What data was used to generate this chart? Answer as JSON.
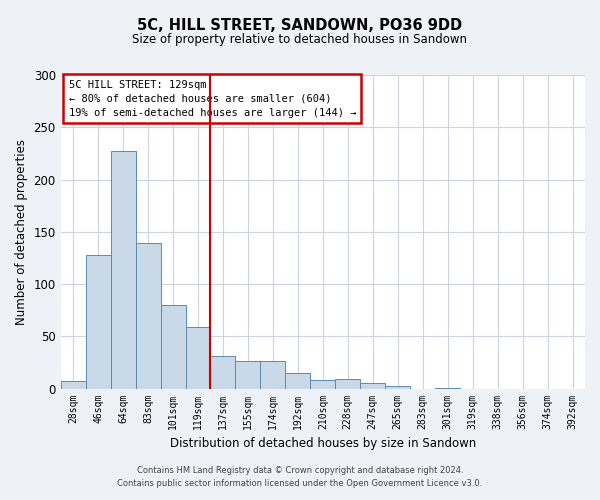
{
  "title": "5C, HILL STREET, SANDOWN, PO36 9DD",
  "subtitle": "Size of property relative to detached houses in Sandown",
  "xlabel": "Distribution of detached houses by size in Sandown",
  "ylabel": "Number of detached properties",
  "bar_labels": [
    "28sqm",
    "46sqm",
    "64sqm",
    "83sqm",
    "101sqm",
    "119sqm",
    "137sqm",
    "155sqm",
    "174sqm",
    "192sqm",
    "210sqm",
    "228sqm",
    "247sqm",
    "265sqm",
    "283sqm",
    "301sqm",
    "319sqm",
    "338sqm",
    "356sqm",
    "374sqm",
    "392sqm"
  ],
  "bar_values": [
    7,
    128,
    227,
    139,
    80,
    59,
    31,
    26,
    26,
    15,
    8,
    9,
    5,
    2,
    0,
    1,
    0,
    0,
    0,
    0,
    0
  ],
  "bar_color": "#c9d9e8",
  "bar_edge_color": "#5a8ab0",
  "vline_x_index": 6,
  "vline_color": "#cc0000",
  "ylim": [
    0,
    300
  ],
  "yticks": [
    0,
    50,
    100,
    150,
    200,
    250,
    300
  ],
  "annotation_title": "5C HILL STREET: 129sqm",
  "annotation_line1": "← 80% of detached houses are smaller (604)",
  "annotation_line2": "19% of semi-detached houses are larger (144) →",
  "annotation_box_color": "#cc0000",
  "footnote1": "Contains HM Land Registry data © Crown copyright and database right 2024.",
  "footnote2": "Contains public sector information licensed under the Open Government Licence v3.0.",
  "background_color": "#eef2f7",
  "plot_bg_color": "#ffffff",
  "grid_color": "#c8d4e0"
}
